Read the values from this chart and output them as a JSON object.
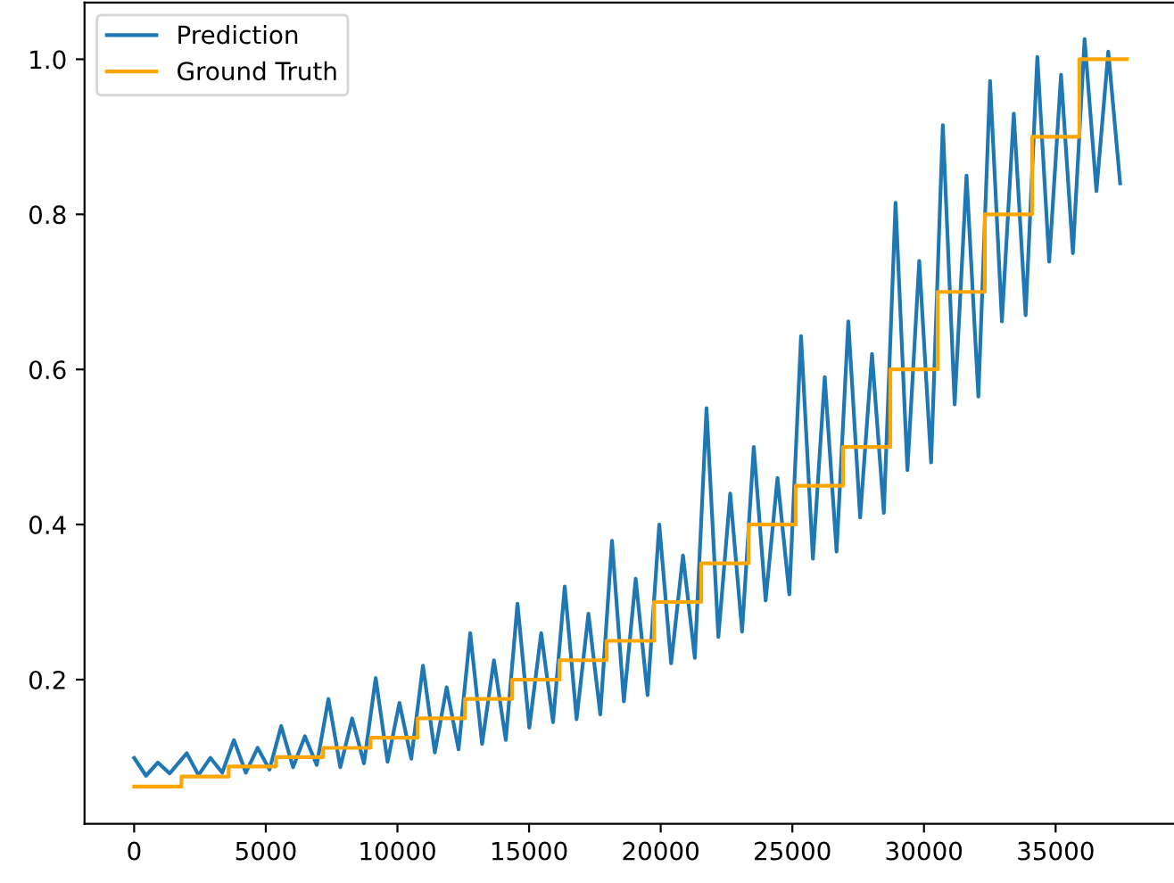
{
  "chart_data": {
    "type": "line",
    "xlim": [
      -1885,
      39585
    ],
    "ylim": [
      0.014,
      1.073
    ],
    "xticks": [
      0,
      5000,
      10000,
      15000,
      20000,
      25000,
      30000,
      35000
    ],
    "yticks": [
      0.2,
      0.4,
      0.6,
      0.8,
      {
        "value": 1,
        "label": "1.0"
      }
    ],
    "grid": false,
    "legend": "top left",
    "line_style": "solid",
    "series": [
      {
        "name": "Prediction",
        "color": "#1f77b4",
        "x": [
          0,
          450,
          900,
          1350,
          1995,
          2445,
          2895,
          3345,
          3790,
          4240,
          4690,
          5140,
          5585,
          6035,
          6485,
          6935,
          7380,
          7830,
          8280,
          8730,
          9175,
          9625,
          10075,
          10525,
          10970,
          11420,
          11870,
          12320,
          12765,
          13215,
          13665,
          14115,
          14560,
          15010,
          15460,
          15910,
          16355,
          16805,
          17255,
          17705,
          18150,
          18600,
          19050,
          19500,
          19945,
          20395,
          20845,
          21295,
          21740,
          22190,
          22640,
          23090,
          23535,
          23985,
          24435,
          24885,
          25330,
          25780,
          26230,
          26680,
          27125,
          27575,
          28025,
          28475,
          28920,
          29370,
          29820,
          30270,
          30715,
          31165,
          31615,
          32065,
          32510,
          32960,
          33410,
          33860,
          34305,
          34755,
          35205,
          35655,
          36100,
          36550,
          37000,
          37450
        ],
        "values": [
          0.099,
          0.076,
          0.093,
          0.079,
          0.105,
          0.077,
          0.099,
          0.08,
          0.122,
          0.08,
          0.112,
          0.084,
          0.14,
          0.087,
          0.127,
          0.09,
          0.175,
          0.087,
          0.15,
          0.092,
          0.202,
          0.094,
          0.17,
          0.098,
          0.218,
          0.106,
          0.19,
          0.11,
          0.26,
          0.117,
          0.225,
          0.122,
          0.298,
          0.138,
          0.26,
          0.145,
          0.32,
          0.149,
          0.285,
          0.155,
          0.379,
          0.172,
          0.33,
          0.18,
          0.4,
          0.221,
          0.36,
          0.228,
          0.55,
          0.255,
          0.44,
          0.262,
          0.5,
          0.302,
          0.46,
          0.31,
          0.643,
          0.356,
          0.59,
          0.365,
          0.662,
          0.409,
          0.62,
          0.415,
          0.815,
          0.47,
          0.74,
          0.48,
          0.915,
          0.555,
          0.85,
          0.565,
          0.972,
          0.662,
          0.93,
          0.67,
          1.003,
          0.739,
          0.98,
          0.75,
          1.026,
          0.83,
          1.01,
          0.84
        ]
      },
      {
        "name": "Ground Truth",
        "type": "step",
        "color": "#ffa500",
        "x": [
          0,
          1795,
          3590,
          5385,
          7180,
          8975,
          10770,
          12565,
          14360,
          16155,
          17950,
          19745,
          21540,
          23335,
          25130,
          26925,
          28720,
          30515,
          32310,
          34105,
          35900,
          37700
        ],
        "values": [
          0.062,
          0.075,
          0.088,
          0.1,
          0.112,
          0.125,
          0.15,
          0.175,
          0.2,
          0.225,
          0.25,
          0.3,
          0.35,
          0.4,
          0.45,
          0.5,
          0.6,
          0.7,
          0.8,
          0.9,
          1.0,
          1.0
        ]
      }
    ]
  }
}
